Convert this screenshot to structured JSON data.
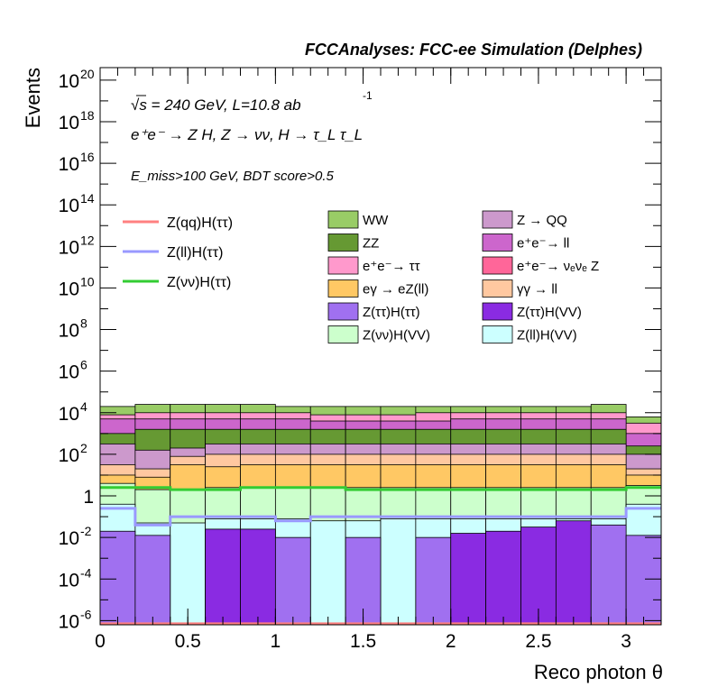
{
  "header": {
    "title": "FCCAnalyses: FCC-ee Simulation (Delphes)"
  },
  "annotations": {
    "energy": "√s = 240 GeV, L=10.8 ab",
    "lumi_exponent": "-1",
    "process": "e⁺e⁻ → Z H, Z → νν, H → τ_L τ_L",
    "cuts": "E_miss>100 GeV, BDT score>0.5"
  },
  "chart_data": {
    "type": "bar",
    "stacked": true,
    "xlabel": "Reco photon θ",
    "ylabel": "Events",
    "xlim": [
      0,
      3.2
    ],
    "ylim_log10": [
      -6.2,
      20.6
    ],
    "log_y": true,
    "bin_edges": [
      0,
      0.2,
      0.4,
      0.6,
      0.8,
      1.0,
      1.2,
      1.4,
      1.6,
      1.8,
      2.0,
      2.2,
      2.4,
      2.6,
      2.8,
      3.0,
      3.2
    ],
    "x_ticks": [
      {
        "v": 0,
        "label": "0"
      },
      {
        "v": 0.5,
        "label": "0.5"
      },
      {
        "v": 1,
        "label": "1"
      },
      {
        "v": 1.5,
        "label": "1.5"
      },
      {
        "v": 2,
        "label": "2"
      },
      {
        "v": 2.5,
        "label": "2.5"
      },
      {
        "v": 3,
        "label": "3"
      }
    ],
    "y_ticks": [
      {
        "e": -6,
        "label": "10",
        "exp": "-6"
      },
      {
        "e": -4,
        "label": "10",
        "exp": "-4"
      },
      {
        "e": -2,
        "label": "10",
        "exp": "-2"
      },
      {
        "e": 0,
        "label": "1",
        "exp": ""
      },
      {
        "e": 2,
        "label": "10",
        "exp": "2"
      },
      {
        "e": 4,
        "label": "10",
        "exp": "4"
      },
      {
        "e": 6,
        "label": "10",
        "exp": "6"
      },
      {
        "e": 8,
        "label": "10",
        "exp": "8"
      },
      {
        "e": 10,
        "label": "10",
        "exp": "10"
      },
      {
        "e": 12,
        "label": "10",
        "exp": "12"
      },
      {
        "e": 14,
        "label": "10",
        "exp": "14"
      },
      {
        "e": 16,
        "label": "10",
        "exp": "16"
      },
      {
        "e": 18,
        "label": "10",
        "exp": "18"
      },
      {
        "e": 20,
        "label": "10",
        "exp": "20"
      }
    ],
    "stack_cumulative_log10": [
      {
        "name": "Z(ττ)H(ττ) / Z(ττ)H(VV)",
        "color": "#a070f0",
        "alt_color": "#8a2be2",
        "tops": [
          -1.7,
          -1.9,
          -6.2,
          -1.6,
          -1.6,
          -2.0,
          -6.2,
          -2.0,
          -6.2,
          -2.0,
          -1.8,
          -1.7,
          -1.5,
          -1.2,
          -1.4,
          -1.9
        ]
      },
      {
        "name": "Z(ll)H(VV)",
        "color": "#ccffff",
        "tops": [
          -0.4,
          -1.3,
          -1.3,
          -1.1,
          -1.1,
          -1.1,
          -1.2,
          -1.2,
          -1.1,
          -1.1,
          -1.1,
          -1.1,
          -1.1,
          -1.1,
          -1.1,
          -0.4
        ]
      },
      {
        "name": "Z(νν)H(VV)",
        "color": "#ccffcc",
        "tops": [
          0.6,
          0.3,
          0.3,
          0.4,
          0.4,
          0.4,
          0.4,
          0.4,
          0.4,
          0.4,
          0.4,
          0.4,
          0.4,
          0.4,
          0.4,
          0.5
        ]
      },
      {
        "name": "eγ → eZ(ll)",
        "color": "#ffc864",
        "tops": [
          1.0,
          0.9,
          1.5,
          1.4,
          1.5,
          1.5,
          1.5,
          1.5,
          1.5,
          1.5,
          1.5,
          1.5,
          1.5,
          1.5,
          1.5,
          1.0
        ]
      },
      {
        "name": "γγ → ll",
        "color": "#ffc8a0",
        "tops": [
          1.5,
          1.3,
          1.9,
          2.0,
          2.0,
          2.0,
          2.0,
          2.0,
          2.0,
          2.0,
          2.0,
          2.0,
          2.0,
          2.0,
          2.0,
          1.3
        ]
      },
      {
        "name": "Z → QQ",
        "color": "#cc99cc",
        "tops": [
          2.5,
          2.2,
          2.3,
          2.5,
          2.5,
          2.5,
          2.5,
          2.5,
          2.5,
          2.5,
          2.5,
          2.5,
          2.5,
          2.5,
          2.5,
          2.0
        ]
      },
      {
        "name": "ZZ",
        "color": "#669933",
        "tops": [
          3.0,
          3.2,
          3.2,
          3.2,
          3.2,
          3.2,
          3.2,
          3.2,
          3.2,
          3.2,
          3.2,
          3.2,
          3.2,
          3.2,
          3.2,
          2.4
        ]
      },
      {
        "name": "e⁺e⁻ → ll",
        "color": "#cc66cc",
        "tops": [
          3.7,
          3.7,
          3.7,
          3.7,
          3.7,
          3.7,
          3.6,
          3.6,
          3.6,
          3.6,
          3.7,
          3.7,
          3.7,
          3.7,
          3.7,
          3.0
        ]
      },
      {
        "name": "e⁺e⁻ → ττ",
        "color": "#ff99cc",
        "tops": [
          3.9,
          4.0,
          4.0,
          4.0,
          4.0,
          4.0,
          3.9,
          3.9,
          3.9,
          4.0,
          4.0,
          4.0,
          4.0,
          4.0,
          4.0,
          3.5
        ]
      },
      {
        "name": "WW",
        "color": "#99cc66",
        "tops": [
          4.3,
          4.4,
          4.4,
          4.4,
          4.4,
          4.3,
          4.3,
          4.3,
          4.3,
          4.3,
          4.3,
          4.3,
          4.3,
          4.3,
          4.4,
          3.8
        ]
      }
    ],
    "signal_lines_log10": [
      {
        "name": "Z(qq)H(ττ)",
        "color": "#ff8080",
        "values": [
          -6.2,
          -6.2,
          -6.2,
          -6.2,
          -6.2,
          -6.2,
          -6.2,
          -6.2,
          -6.2,
          -6.2,
          -6.2,
          -6.2,
          -6.2,
          -6.2,
          -6.2,
          -6.2
        ]
      },
      {
        "name": "Z(ll)H(ττ)",
        "color": "#9999ff",
        "values": [
          -0.6,
          -1.4,
          -1.0,
          -1.0,
          -1.0,
          -1.2,
          -1.0,
          -1.0,
          -1.0,
          -1.0,
          -1.0,
          -1.0,
          -1.0,
          -1.0,
          -1.0,
          -0.6
        ]
      },
      {
        "name": "Z(νν)H(ττ)",
        "color": "#33cc33",
        "values": [
          0.4,
          0.4,
          0.3,
          0.3,
          0.4,
          0.4,
          0.4,
          0.3,
          0.3,
          0.3,
          0.3,
          0.3,
          0.3,
          0.3,
          0.3,
          0.4
        ]
      }
    ],
    "legend_lines": [
      {
        "label": "Z(qq)H(ττ)",
        "color": "#ff8080"
      },
      {
        "label": "Z(ll)H(ττ)",
        "color": "#9999ff"
      },
      {
        "label": "Z(νν)H(ττ)",
        "color": "#33cc33"
      }
    ],
    "legend_fills": [
      {
        "label": "WW",
        "color": "#99cc66"
      },
      {
        "label": "Z → QQ",
        "color": "#cc99cc"
      },
      {
        "label": "ZZ",
        "color": "#669933"
      },
      {
        "label": "e⁺e⁻→ ll",
        "color": "#cc66cc"
      },
      {
        "label": "e⁺e⁻→ ττ",
        "color": "#ff99cc"
      },
      {
        "label": "e⁺e⁻→ νₑνₑ Z",
        "color": "#ff6699"
      },
      {
        "label": "eγ → eZ(ll)",
        "color": "#ffc864"
      },
      {
        "label": "γγ → ll",
        "color": "#ffc8a0"
      },
      {
        "label": "Z(ττ)H(ττ)",
        "color": "#a070f0"
      },
      {
        "label": "Z(ττ)H(VV)",
        "color": "#8a2be2"
      },
      {
        "label": "Z(νν)H(VV)",
        "color": "#ccffcc"
      },
      {
        "label": "Z(ll)H(VV)",
        "color": "#ccffff"
      }
    ]
  }
}
